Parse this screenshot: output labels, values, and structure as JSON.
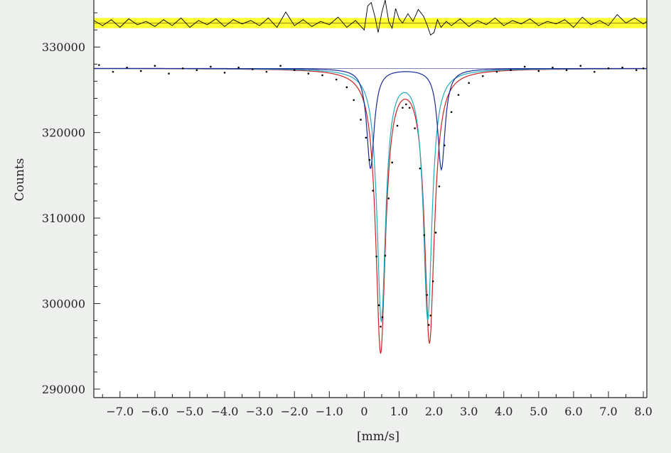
{
  "chart_data": {
    "type": "line",
    "title": "",
    "xlabel": "[mm/s]",
    "ylabel": "Counts",
    "xlim": [
      -7.75,
      8.1
    ],
    "ylim": [
      289000,
      335500
    ],
    "x_ticks": [
      -7.0,
      -6.0,
      -5.0,
      -4.0,
      -3.0,
      -2.0,
      -1.0,
      0,
      1.0,
      2.0,
      3.0,
      4.0,
      5.0,
      6.0,
      7.0,
      8.0
    ],
    "x_tick_labels": [
      "−7.0",
      "−6.0",
      "−5.0",
      "−4.0",
      "−3.0",
      "−2.0",
      "−1.0",
      "0",
      "1.0",
      "2.0",
      "3.0",
      "4.0",
      "5.0",
      "6.0",
      "7.0",
      "8.0"
    ],
    "y_ticks": [
      290000,
      300000,
      310000,
      320000,
      330000
    ],
    "y_tick_labels": [
      "290000",
      "300000",
      "310000",
      "320000",
      "330000"
    ],
    "grid": false,
    "baseline": 327500,
    "residual_band": {
      "center": 332800,
      "half_width": 600,
      "color": "#ffff33"
    },
    "series": [
      {
        "kind": "lorentzian_doublet",
        "color": "#cc2222",
        "baseline": 327500,
        "peaks": [
          {
            "center": 0.47,
            "depth": 32900,
            "hwhm": 0.17
          },
          {
            "center": 1.87,
            "depth": 31700,
            "hwhm": 0.17
          }
        ]
      },
      {
        "kind": "lorentzian_doublet",
        "color": "#22aabb",
        "baseline": 327500,
        "peaks": [
          {
            "center": 0.49,
            "depth": 29300,
            "hwhm": 0.15
          },
          {
            "center": 1.82,
            "depth": 29100,
            "hwhm": 0.15
          }
        ]
      },
      {
        "kind": "lorentzian_doublet",
        "color": "#1a2a99",
        "baseline": 327500,
        "peaks": [
          {
            "center": 0.18,
            "depth": 11700,
            "hwhm": 0.13
          },
          {
            "center": 2.21,
            "depth": 11800,
            "hwhm": 0.13
          }
        ]
      }
    ],
    "points": {
      "color": "#000000",
      "x": [
        -7.6,
        -7.2,
        -6.8,
        -6.4,
        -6.0,
        -5.6,
        -5.2,
        -4.8,
        -4.4,
        -4.0,
        -3.6,
        -3.2,
        -2.8,
        -2.4,
        -2.0,
        -1.6,
        -1.2,
        -0.8,
        -0.5,
        -0.3,
        -0.1,
        0.05,
        0.15,
        0.25,
        0.35,
        0.42,
        0.47,
        0.52,
        0.6,
        0.7,
        0.8,
        0.95,
        1.1,
        1.2,
        1.3,
        1.45,
        1.6,
        1.72,
        1.8,
        1.85,
        1.9,
        1.97,
        2.05,
        2.15,
        2.3,
        2.5,
        2.7,
        3.0,
        3.4,
        3.8,
        4.2,
        4.6,
        5.0,
        5.4,
        5.8,
        6.2,
        6.6,
        7.0,
        7.4,
        7.8,
        8.0
      ],
      "y": [
        327900,
        327100,
        327600,
        327200,
        327800,
        326900,
        327500,
        327300,
        327700,
        327000,
        327600,
        327400,
        327100,
        327800,
        327300,
        326900,
        326700,
        326200,
        325300,
        323800,
        321500,
        319400,
        316800,
        313200,
        305500,
        299800,
        297300,
        298400,
        305600,
        312300,
        316500,
        320800,
        322900,
        323300,
        322900,
        320500,
        315800,
        308000,
        301000,
        297500,
        298600,
        302600,
        308300,
        313700,
        318500,
        322400,
        324400,
        325800,
        326600,
        327100,
        327300,
        327700,
        327200,
        327600,
        327300,
        327800,
        327100,
        327500,
        327600,
        327300,
        327500
      ]
    },
    "residual": {
      "color": "#000000",
      "x": [
        -7.75,
        -7.5,
        -7.25,
        -7.0,
        -6.75,
        -6.5,
        -6.25,
        -6.0,
        -5.75,
        -5.5,
        -5.25,
        -5.0,
        -4.75,
        -4.5,
        -4.25,
        -4.0,
        -3.75,
        -3.5,
        -3.25,
        -3.0,
        -2.75,
        -2.5,
        -2.25,
        -2.0,
        -1.75,
        -1.5,
        -1.25,
        -1.0,
        -0.75,
        -0.5,
        -0.25,
        0.0,
        0.1,
        0.2,
        0.3,
        0.4,
        0.5,
        0.6,
        0.7,
        0.8,
        0.9,
        1.0,
        1.1,
        1.25,
        1.4,
        1.55,
        1.7,
        1.8,
        1.9,
        2.0,
        2.1,
        2.2,
        2.35,
        2.5,
        2.75,
        3.0,
        3.25,
        3.5,
        3.75,
        4.0,
        4.25,
        4.5,
        4.75,
        5.0,
        5.25,
        5.5,
        5.75,
        6.0,
        6.25,
        6.5,
        6.75,
        7.0,
        7.25,
        7.5,
        7.75,
        8.0,
        8.1
      ],
      "y": [
        333100,
        332500,
        333200,
        332300,
        333300,
        332600,
        333000,
        332400,
        333200,
        332500,
        333400,
        332300,
        333100,
        332600,
        333300,
        332400,
        333200,
        332700,
        333100,
        332500,
        333400,
        332300,
        334100,
        332500,
        333200,
        332400,
        333000,
        332600,
        333500,
        332300,
        333100,
        332000,
        334800,
        335200,
        333700,
        331700,
        334000,
        335500,
        333000,
        332200,
        334500,
        333300,
        332800,
        333900,
        333000,
        334400,
        333600,
        332600,
        331400,
        331700,
        333200,
        332300,
        333000,
        332500,
        333300,
        332400,
        333100,
        332600,
        333400,
        332500,
        333100,
        332700,
        333300,
        332500,
        333000,
        332700,
        333200,
        332300,
        333500,
        332600,
        333100,
        332500,
        333800,
        332800,
        333400,
        332700,
        333000
      ]
    }
  }
}
